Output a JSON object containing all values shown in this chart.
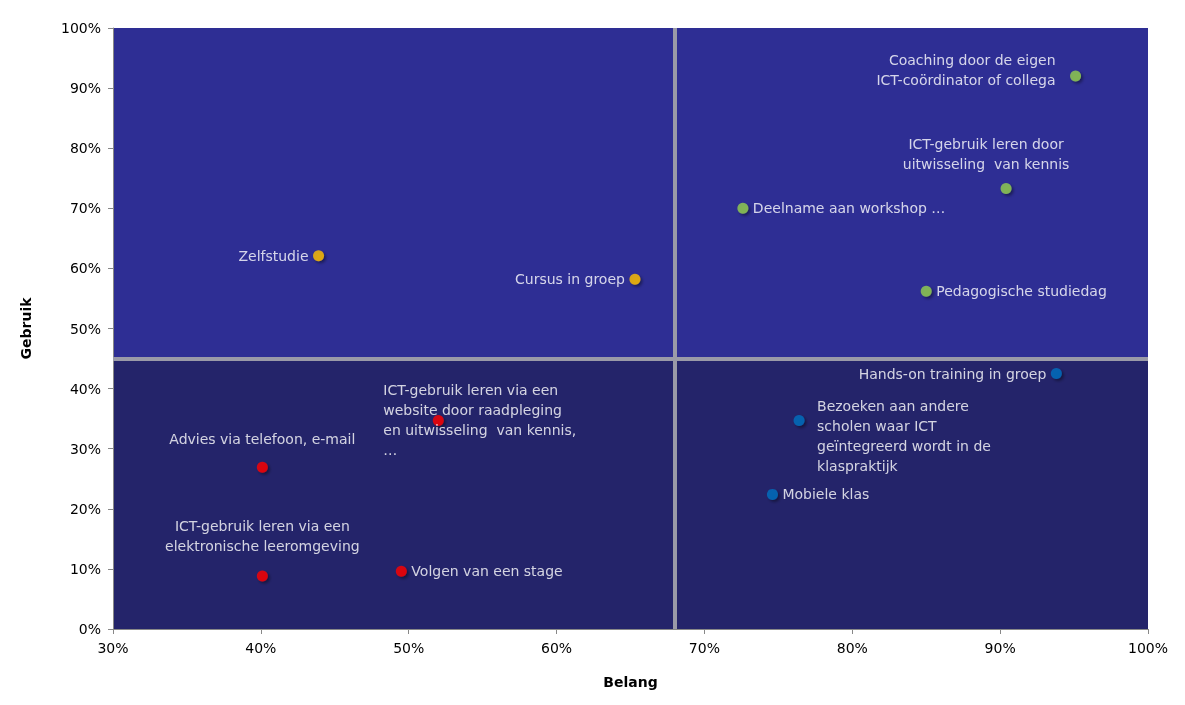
{
  "chart_data": {
    "type": "scatter",
    "xlabel": "Belang",
    "ylabel": "Gebruik",
    "xlim": [
      30,
      100
    ],
    "ylim": [
      0,
      100
    ],
    "xticks": [
      {
        "value": 30,
        "label": "30%"
      },
      {
        "value": 40,
        "label": "40%"
      },
      {
        "value": 50,
        "label": "50%"
      },
      {
        "value": 60,
        "label": "60%"
      },
      {
        "value": 70,
        "label": "70%"
      },
      {
        "value": 80,
        "label": "80%"
      },
      {
        "value": 90,
        "label": "90%"
      },
      {
        "value": 100,
        "label": "100%"
      }
    ],
    "yticks": [
      {
        "value": 0,
        "label": "0%"
      },
      {
        "value": 10,
        "label": "10%"
      },
      {
        "value": 20,
        "label": "20%"
      },
      {
        "value": 30,
        "label": "30%"
      },
      {
        "value": 40,
        "label": "40%"
      },
      {
        "value": 50,
        "label": "50%"
      },
      {
        "value": 60,
        "label": "60%"
      },
      {
        "value": 70,
        "label": "70%"
      },
      {
        "value": 80,
        "label": "80%"
      },
      {
        "value": 90,
        "label": "90%"
      },
      {
        "value": 100,
        "label": "100%"
      }
    ],
    "grid": false,
    "marker": "circle",
    "bands": [
      {
        "axis": "y",
        "from": 45,
        "to": 100,
        "color": "#2e2e94"
      },
      {
        "axis": "y",
        "from": 0,
        "to": 45,
        "color": "#24246a"
      }
    ],
    "ref_lines": [
      {
        "axis": "x",
        "value": 68,
        "color": "#9a9aa8"
      },
      {
        "axis": "y",
        "value": 45,
        "color": "#9a9aa8"
      }
    ],
    "series": [
      {
        "color": "#92d050",
        "x": [
          95.1,
          90.4,
          72.6,
          85.0
        ],
        "values": [
          92,
          73.3,
          70,
          56.2
        ]
      },
      {
        "color": "#ffc000",
        "x": [
          43.9,
          65.3
        ],
        "values": [
          62.1,
          58.2
        ]
      },
      {
        "color": "#0070c0",
        "x": [
          93.8,
          76.4,
          74.6
        ],
        "values": [
          42.5,
          34.7,
          22.4
        ]
      },
      {
        "color": "#ff0000",
        "x": [
          52.0,
          40.1,
          40.1,
          49.5
        ],
        "values": [
          34.7,
          26.9,
          8.8,
          9.6
        ]
      }
    ],
    "annotations": [
      {
        "text": "Coaching door de eigen\nICT-coördinator of collega",
        "x": 95.1,
        "y": 92
      },
      {
        "text": "ICT-gebruik leren door\nuitwisseling  van kennis",
        "x": 90.4,
        "y": 73.3
      },
      {
        "text": "Deelname aan workshop …",
        "x": 72.6,
        "y": 70
      },
      {
        "text": "Pedagogische studiedag",
        "x": 85.0,
        "y": 56.2
      },
      {
        "text": "Zelfstudie",
        "x": 43.9,
        "y": 62.1
      },
      {
        "text": "Cursus in groep",
        "x": 65.3,
        "y": 58.2
      },
      {
        "text": "Hands-on training in groep",
        "x": 93.8,
        "y": 42.5
      },
      {
        "text": "Bezoeken aan andere\nscholen waar ICT\ngeïntegreerd wordt in de\nklaspraktijk",
        "x": 76.4,
        "y": 34.7
      },
      {
        "text": "Mobiele klas",
        "x": 74.6,
        "y": 22.4
      },
      {
        "text": "ICT-gebruik leren via een\nwebsite door raadpleging\nen uitwisseling  van kennis,\n…",
        "x": 52.0,
        "y": 34.7
      },
      {
        "text": "Advies via telefoon, e-mail",
        "x": 40.1,
        "y": 26.9
      },
      {
        "text": "ICT-gebruik leren via een\nelektronische leeromgeving",
        "x": 40.1,
        "y": 8.8
      },
      {
        "text": "Volgen van een stage",
        "x": 49.5,
        "y": 9.6
      }
    ]
  }
}
